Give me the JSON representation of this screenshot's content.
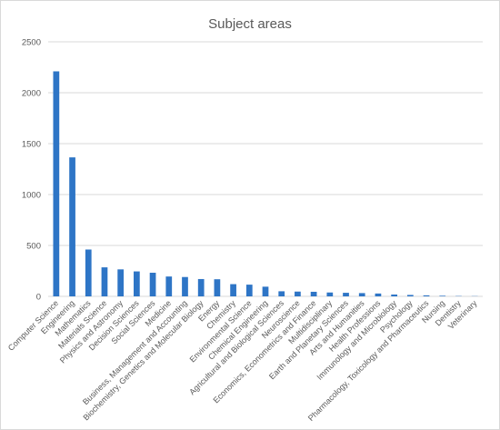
{
  "chart_data": {
    "type": "bar",
    "title": "Subject areas",
    "xlabel": "",
    "ylabel": "",
    "ylim": [
      0,
      2500
    ],
    "yticks": [
      0,
      500,
      1000,
      1500,
      2000,
      2500
    ],
    "grid": true,
    "legend": "none",
    "bar_color": "#2e75c6",
    "categories": [
      "Computer Science",
      "Engineering",
      "Mathematics",
      "Materials Science",
      "Physics and Astronomy",
      "Decision Sciences",
      "Social Sciences",
      "Medicine",
      "Business, Management and Accounting",
      "Biochemistry, Genetics and Molecular Biology",
      "Energy",
      "Chemistry",
      "Environmental Science",
      "Chemical Engineering",
      "Agricultural and Biological Sciences",
      "Neuroscience",
      "Economics, Econometrics and Finance",
      "Multidisciplinary",
      "Earth and Planetary Sciences",
      "Arts and Humanities",
      "Health Professions",
      "Immunology and Microbiology",
      "Psychology",
      "Pharmacology, Toxicology and Pharmaceutics",
      "Nursing",
      "Dentistry",
      "Veterinary"
    ],
    "values": [
      2210,
      1365,
      460,
      285,
      265,
      245,
      232,
      195,
      190,
      170,
      168,
      120,
      115,
      95,
      50,
      47,
      45,
      38,
      35,
      32,
      28,
      18,
      14,
      10,
      6,
      3,
      2
    ]
  }
}
